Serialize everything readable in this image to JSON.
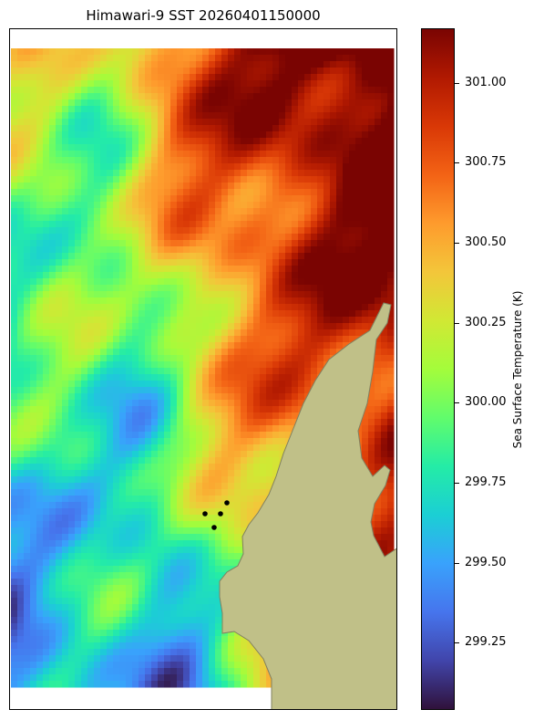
{
  "title": "Himawari-9 SST 20260401150000",
  "colorbar": {
    "label": "Sea Surface Temperature (K)",
    "ticks": [
      "301.00",
      "300.75",
      "300.50",
      "300.25",
      "300.00",
      "299.75",
      "299.50",
      "299.25"
    ],
    "tick_values": [
      301.0,
      300.75,
      300.5,
      300.25,
      300.0,
      299.75,
      299.5,
      299.25
    ],
    "range": [
      299.04,
      301.17
    ],
    "colormap": [
      "#30123b",
      "#4145ab",
      "#4675ed",
      "#39a2fc",
      "#1bcfd4",
      "#24eca6",
      "#61fc6c",
      "#a4fc3b",
      "#d1e834",
      "#f3c63a",
      "#fe9b2d",
      "#f36315",
      "#d93806",
      "#b11901",
      "#7a0402"
    ]
  },
  "map": {
    "land_color": "#c0c088",
    "coast_color": "#808060",
    "marker_color": "#000000",
    "markers_count": 4
  }
}
